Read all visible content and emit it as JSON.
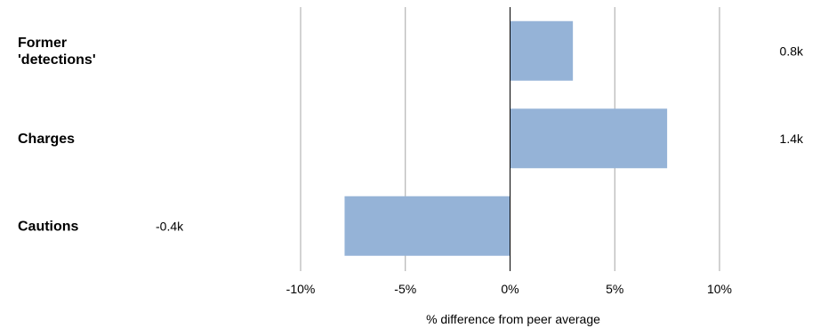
{
  "chart_data": {
    "type": "bar",
    "orientation": "horizontal",
    "categories": [
      [
        "Former",
        "'detections'"
      ],
      [
        "Charges"
      ],
      [
        "Cautions"
      ]
    ],
    "values": [
      3.0,
      7.5,
      -7.9
    ],
    "value_labels": [
      "0.8k",
      "1.4k",
      "-0.4k"
    ],
    "xlabel": "% difference from peer average",
    "xlim": [
      -10,
      10
    ],
    "xticks": [
      -10,
      -5,
      0,
      5,
      10
    ],
    "xtick_labels": [
      "-10%",
      "-5%",
      "0%",
      "5%",
      "10%"
    ],
    "grid": true,
    "legend": "none",
    "colors": {
      "bar": "#95B3D7",
      "grid": "#A6A6A6",
      "zero_line": "#000000"
    }
  }
}
